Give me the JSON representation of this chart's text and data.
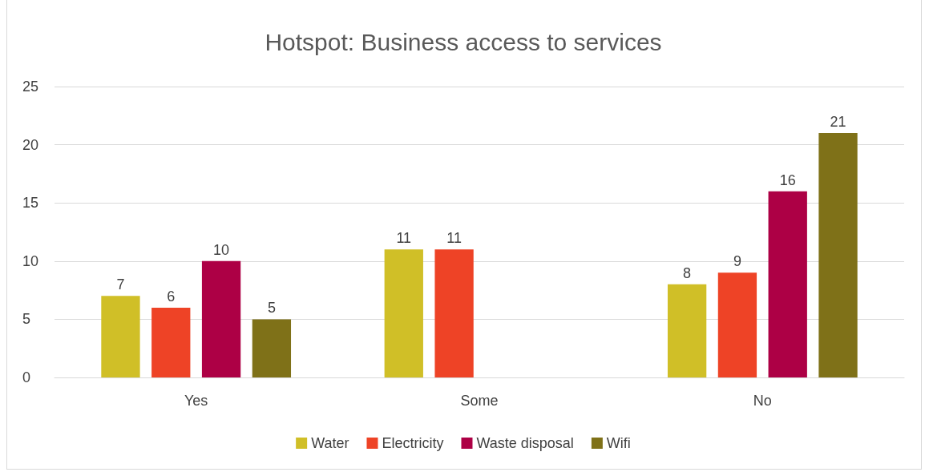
{
  "chart_data": {
    "type": "bar",
    "title": "Hotspot: Business access to services",
    "categories": [
      "Yes",
      "Some",
      "No"
    ],
    "series": [
      {
        "name": "Water",
        "color": "#d0bf27",
        "values": [
          7,
          11,
          8
        ]
      },
      {
        "name": "Electricity",
        "color": "#ee4326",
        "values": [
          6,
          11,
          9
        ]
      },
      {
        "name": "Waste disposal",
        "color": "#ad0045",
        "values": [
          10,
          null,
          16
        ]
      },
      {
        "name": "Wifi",
        "color": "#7f7118",
        "values": [
          5,
          null,
          21
        ]
      }
    ],
    "ylim": [
      0,
      25
    ],
    "yticks": [
      0,
      5,
      10,
      15,
      20,
      25
    ],
    "grid": "y",
    "legend": "bottom",
    "data_labels": true
  }
}
